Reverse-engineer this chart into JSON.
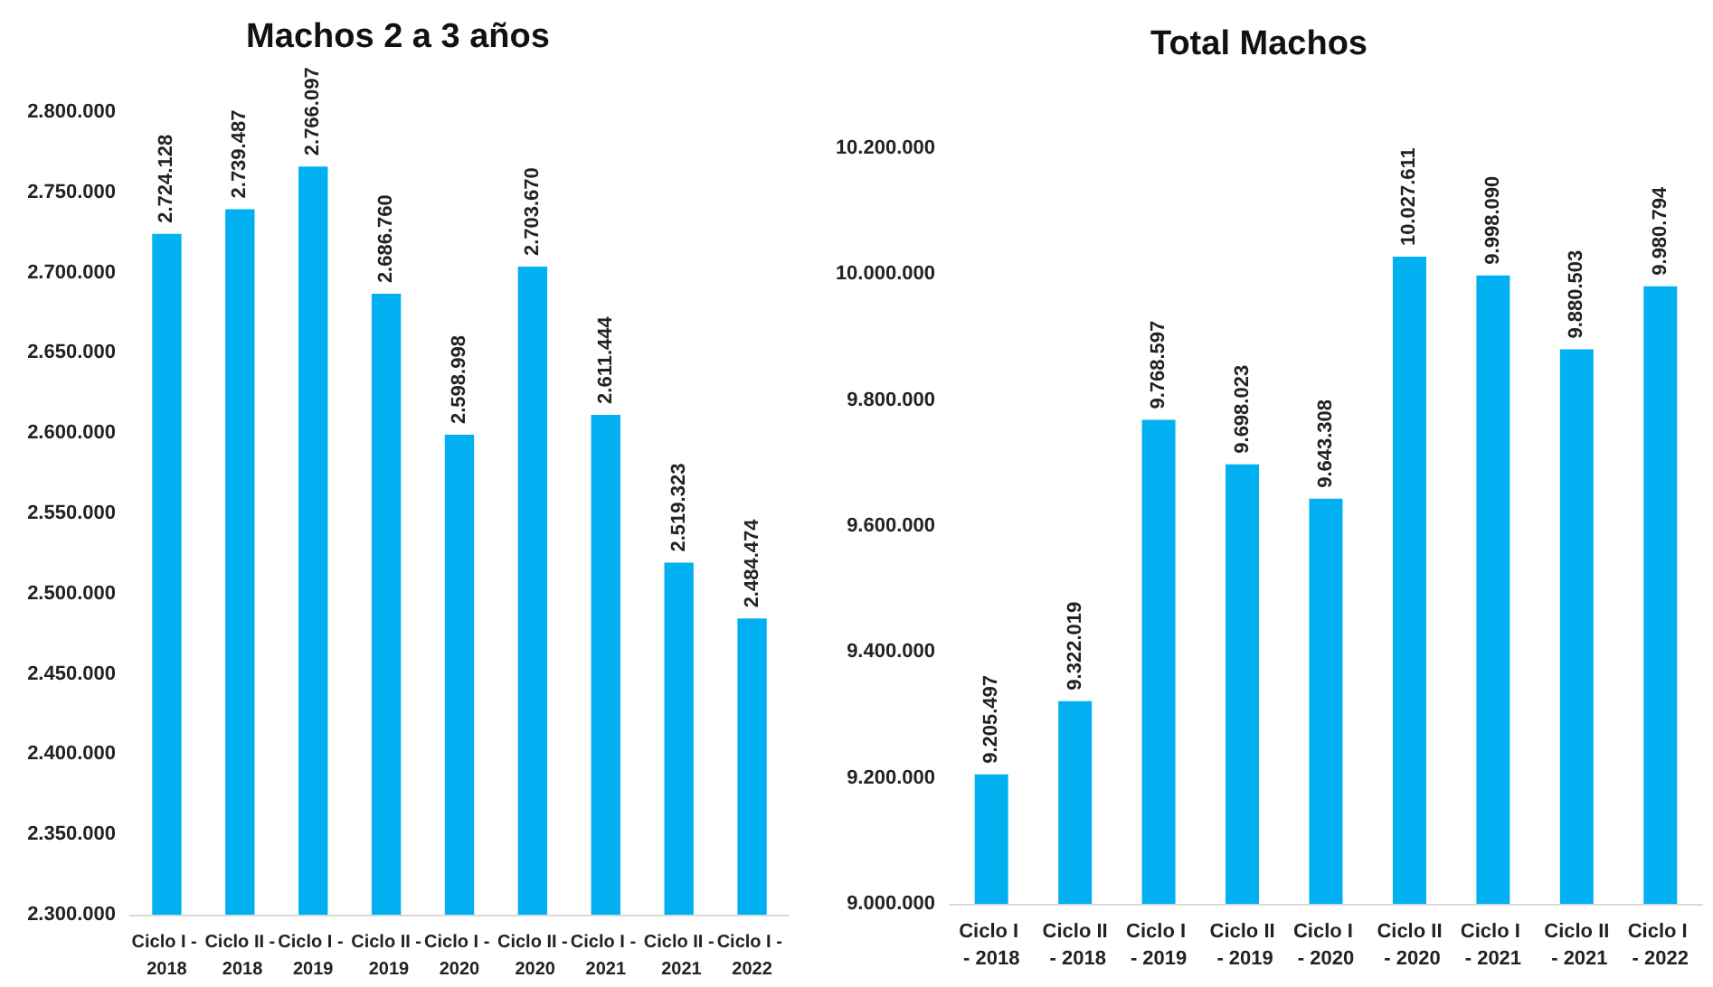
{
  "chart_data": [
    {
      "type": "bar",
      "title": "Machos 2 a 3 años",
      "categories": [
        "Ciclo I - 2018",
        "Ciclo II - 2018",
        "Ciclo I - 2019",
        "Ciclo II - 2019",
        "Ciclo I - 2020",
        "Ciclo II - 2020",
        "Ciclo I - 2021",
        "Ciclo II - 2021",
        "Ciclo I - 2022"
      ],
      "values": [
        2724128,
        2739487,
        2766097,
        2686760,
        2598998,
        2703670,
        2611444,
        2519323,
        2484474
      ],
      "color": "#00b0f0",
      "value_labels": [
        "2.724.128",
        "2.739.487",
        "2.766.097",
        "2.686.760",
        "2.598.998",
        "2.703.670",
        "2.611.444",
        "2.519.323",
        "2.484.474"
      ],
      "ylim": [
        2300000,
        2800000
      ],
      "yticks": [
        {
          "value": 2300000,
          "label": "2.300.000"
        },
        {
          "value": 2350000,
          "label": "2.350.000"
        },
        {
          "value": 2400000,
          "label": "2.400.000"
        },
        {
          "value": 2450000,
          "label": "2.450.000"
        },
        {
          "value": 2500000,
          "label": "2.500.000"
        },
        {
          "value": 2550000,
          "label": "2.550.000"
        },
        {
          "value": 2600000,
          "label": "2.600.000"
        },
        {
          "value": 2650000,
          "label": "2.650.000"
        },
        {
          "value": 2700000,
          "label": "2.700.000"
        },
        {
          "value": 2750000,
          "label": "2.750.000"
        },
        {
          "value": 2800000,
          "label": "2.800.000"
        }
      ],
      "grid": false
    },
    {
      "type": "bar",
      "title": "Total Machos",
      "categories": [
        "Ciclo I - 2018",
        "Ciclo II - 2018",
        "Ciclo I - 2019",
        "Ciclo II - 2019",
        "Ciclo I - 2020",
        "Ciclo II - 2020",
        "Ciclo I - 2021",
        "Ciclo II - 2021",
        "Ciclo I - 2022"
      ],
      "values": [
        9205497,
        9322019,
        9768597,
        9698023,
        9643308,
        10027611,
        9998090,
        9880503,
        9980794
      ],
      "color": "#00b0f0",
      "value_labels": [
        "9.205.497",
        "9.322.019",
        "9.768.597",
        "9.698.023",
        "9.643.308",
        "10.027.611",
        "9.998.090",
        "9.880.503",
        "9.980.794"
      ],
      "ylim": [
        9000000,
        10200000
      ],
      "yticks": [
        {
          "value": 9000000,
          "label": "9.000.000"
        },
        {
          "value": 9200000,
          "label": "9.200.000"
        },
        {
          "value": 9400000,
          "label": "9.400.000"
        },
        {
          "value": 9600000,
          "label": "9.600.000"
        },
        {
          "value": 9800000,
          "label": "9.800.000"
        },
        {
          "value": 10000000,
          "label": "10.000.000"
        },
        {
          "value": 10200000,
          "label": "10.200.000"
        }
      ],
      "grid": false
    }
  ]
}
